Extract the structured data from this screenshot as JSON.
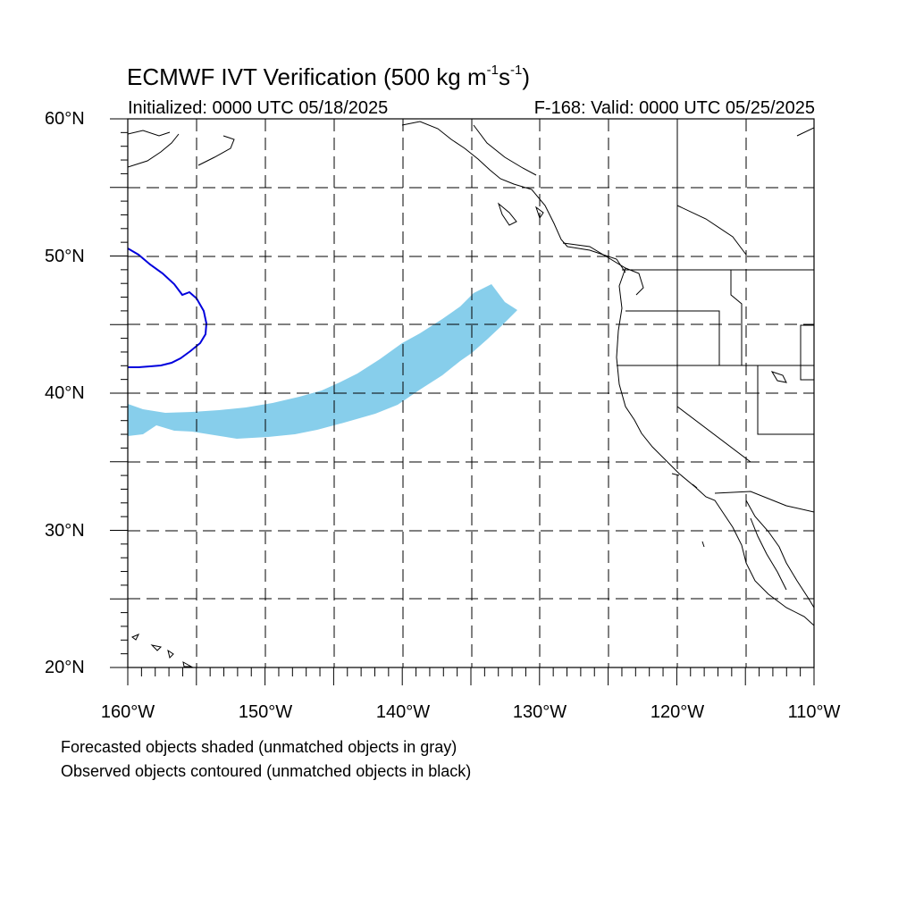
{
  "title": {
    "text": "ECMWF IVT Verification (500 kg m",
    "exp1": "-1",
    "mid": "s",
    "exp2": "-1",
    "end": ")"
  },
  "subtitle_left": "Initialized: 0000 UTC 05/18/2025",
  "subtitle_right": "F-168: Valid: 0000 UTC 05/25/2025",
  "lat_labels": [
    "60°N",
    "50°N",
    "40°N",
    "30°N",
    "20°N"
  ],
  "lon_labels": [
    "160°W",
    "150°W",
    "140°W",
    "130°W",
    "120°W",
    "110°W"
  ],
  "footnotes": [
    "Forecasted objects shaded (unmatched objects in gray)",
    "Observed objects contoured (unmatched objects in black)"
  ],
  "colors": {
    "forecast_fill": "#87ceeb",
    "observed_contour": "#0000dd",
    "coastline": "#000000",
    "grid": "#000000"
  }
}
